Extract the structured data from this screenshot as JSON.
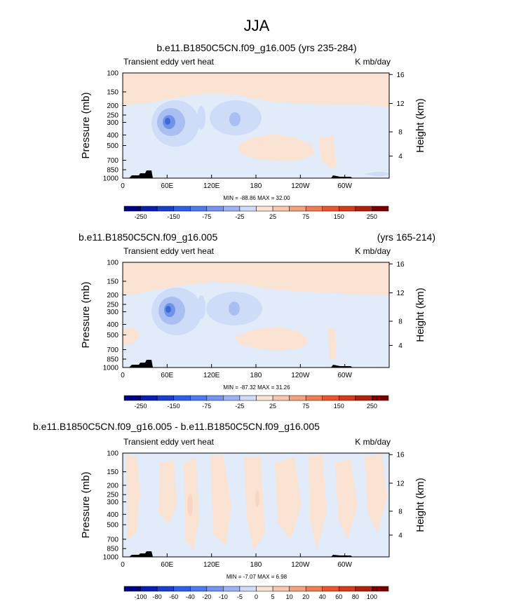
{
  "page_title": "JJA",
  "colors": {
    "c_neg5": "#3c68d8",
    "c_neg4": "#6f93e8",
    "c_neg3": "#a9bff2",
    "c_neg2": "#cfdcf8",
    "c_neg1": "#e1ebfa",
    "c_pos1": "#fbe3d3",
    "c_pos2": "#f8d6c4",
    "c_pos3": "#f4b79b",
    "land": "#000000"
  },
  "chart_data": [
    {
      "type": "heatmap",
      "title": "b.e11.B1850C5CN.f09_g16.005 (yrs 235-284)",
      "left_string": "Transient eddy vert heat",
      "right_string": "K mb/day",
      "xlabel": "",
      "ylabel": "Pressure (mb)",
      "y2label": "Height (km)",
      "x_ticks": [
        "0",
        "60E",
        "120E",
        "180",
        "120W",
        "60W"
      ],
      "y_ticks": [
        "100",
        "150",
        "200",
        "250",
        "300",
        "400",
        "500",
        "700",
        "850",
        "1000"
      ],
      "y2_ticks": [
        "16",
        "12",
        "8",
        "4"
      ],
      "stats": "MIN = -88.86   MAX =  32.00",
      "colorbar_labels": [
        "-250",
        "-150",
        "-75",
        "-25",
        "25",
        "75",
        "150",
        "250"
      ]
    },
    {
      "type": "heatmap",
      "title": "b.e11.B1850C5CN.f09_g16.005",
      "title_right": "(yrs 165-214)",
      "left_string": "Transient eddy vert heat",
      "right_string": "K mb/day",
      "xlabel": "",
      "ylabel": "Pressure (mb)",
      "y2label": "Height (km)",
      "x_ticks": [
        "0",
        "60E",
        "120E",
        "180",
        "120W",
        "60W"
      ],
      "y_ticks": [
        "100",
        "150",
        "200",
        "250",
        "300",
        "400",
        "500",
        "700",
        "850",
        "1000"
      ],
      "y2_ticks": [
        "16",
        "12",
        "8",
        "4"
      ],
      "stats": "MIN = -87.32   MAX =  31.26",
      "colorbar_labels": [
        "-250",
        "-150",
        "-75",
        "-25",
        "25",
        "75",
        "150",
        "250"
      ]
    },
    {
      "type": "heatmap",
      "title": "b.e11.B1850C5CN.f09_g16.005 - b.e11.B1850C5CN.f09_g16.005",
      "left_string": "Transient eddy vert heat",
      "right_string": "K mb/day",
      "xlabel": "",
      "ylabel": "Pressure (mb)",
      "y2label": "Height (km)",
      "x_ticks": [
        "0",
        "60E",
        "120E",
        "180",
        "120W",
        "60W"
      ],
      "y_ticks": [
        "100",
        "150",
        "200",
        "250",
        "300",
        "400",
        "500",
        "700",
        "850",
        "1000"
      ],
      "y2_ticks": [
        "16",
        "12",
        "8",
        "4"
      ],
      "stats": "MIN =  -7.07   MAX =   6.98",
      "colorbar_labels": [
        "-100",
        "-80",
        "-60",
        "-40",
        "-20",
        "-10",
        "-5",
        "0",
        "5",
        "10",
        "20",
        "40",
        "60",
        "80",
        "100"
      ]
    }
  ]
}
